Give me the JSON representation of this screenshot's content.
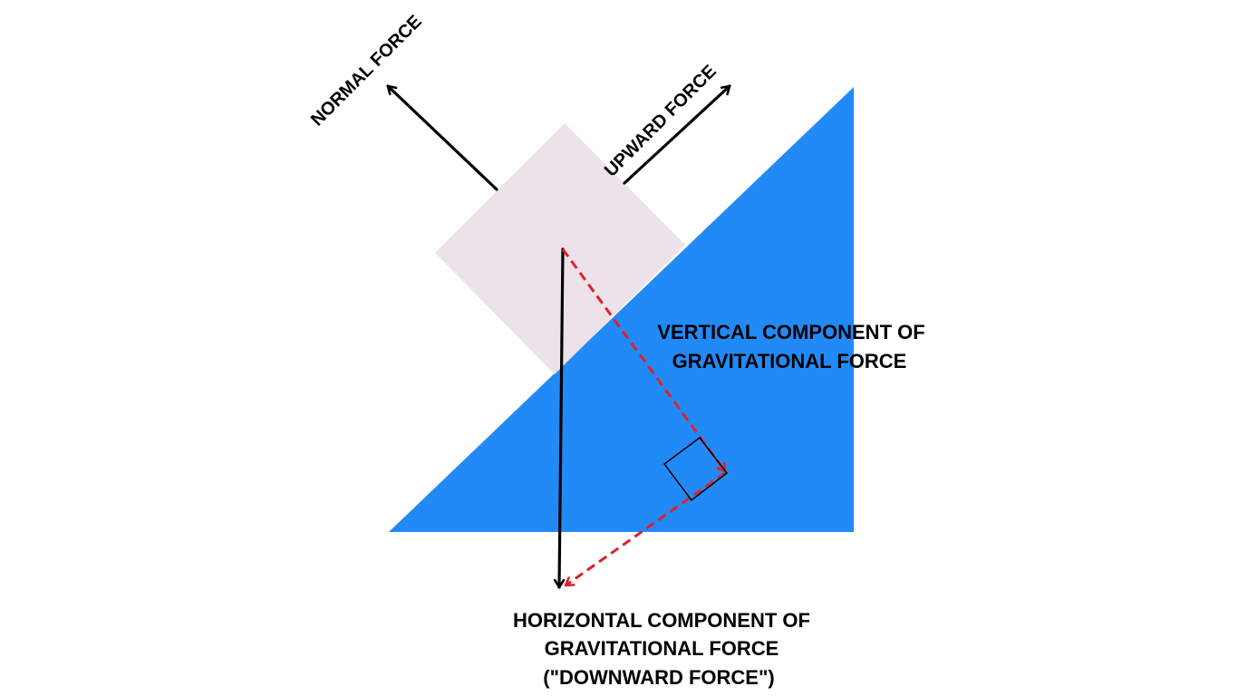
{
  "colors": {
    "background": "#ffffff",
    "incline": "#228af7",
    "block": "#ede1ea",
    "force_arrow": "#000000",
    "component_arrow": "#e0202a"
  },
  "labels": {
    "normal_force": "NORMAL FORCE",
    "upward_force": "UPWARD FORCE",
    "vertical_component_line1": "VERTICAL COMPONENT OF",
    "vertical_component_line2": "GRAVITATIONAL FORCE",
    "horizontal_component_line1": "HORIZONTAL COMPONENT OF",
    "horizontal_component_line2": "GRAVITATIONAL FORCE",
    "horizontal_component_line3": "(\"DOWNWARD FORCE\")"
  }
}
